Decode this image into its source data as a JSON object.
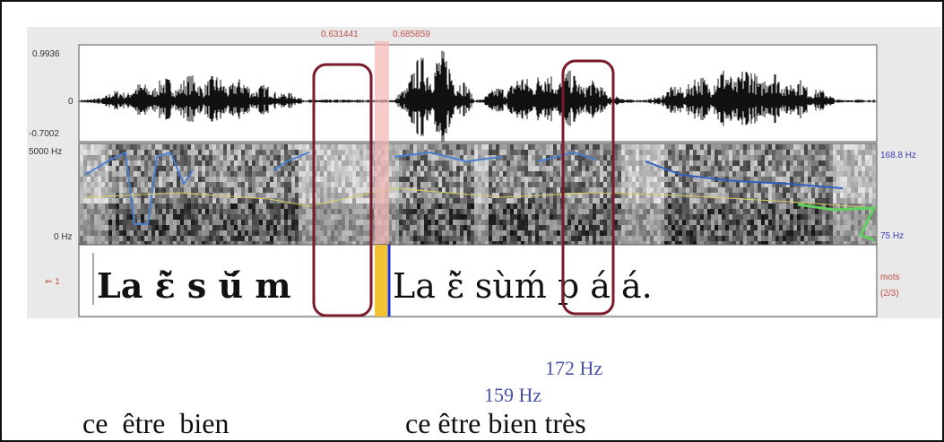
{
  "selection": {
    "start": "0.631441",
    "end": "0.685859"
  },
  "waveform": {
    "max": "0.9936",
    "zero": "0",
    "min": "-0.7002"
  },
  "spectrogram": {
    "freq_max": "5000 Hz",
    "freq_min": "0 Hz",
    "pitch_max": "168.8 Hz",
    "pitch_min": "75 Hz"
  },
  "tier": {
    "number": "⇐ 1",
    "name": "mots",
    "count": "(2/3)",
    "intervals": [
      "La ɛ̃̀  s ŭ́  m",
      "La ɛ̃̀  sùḿ p á á."
    ]
  },
  "annotations": {
    "pitch_1": "172 Hz",
    "pitch_2": "159 Hz",
    "gloss_1": "ce  être  bien",
    "gloss_2": "ce être bien très"
  }
}
